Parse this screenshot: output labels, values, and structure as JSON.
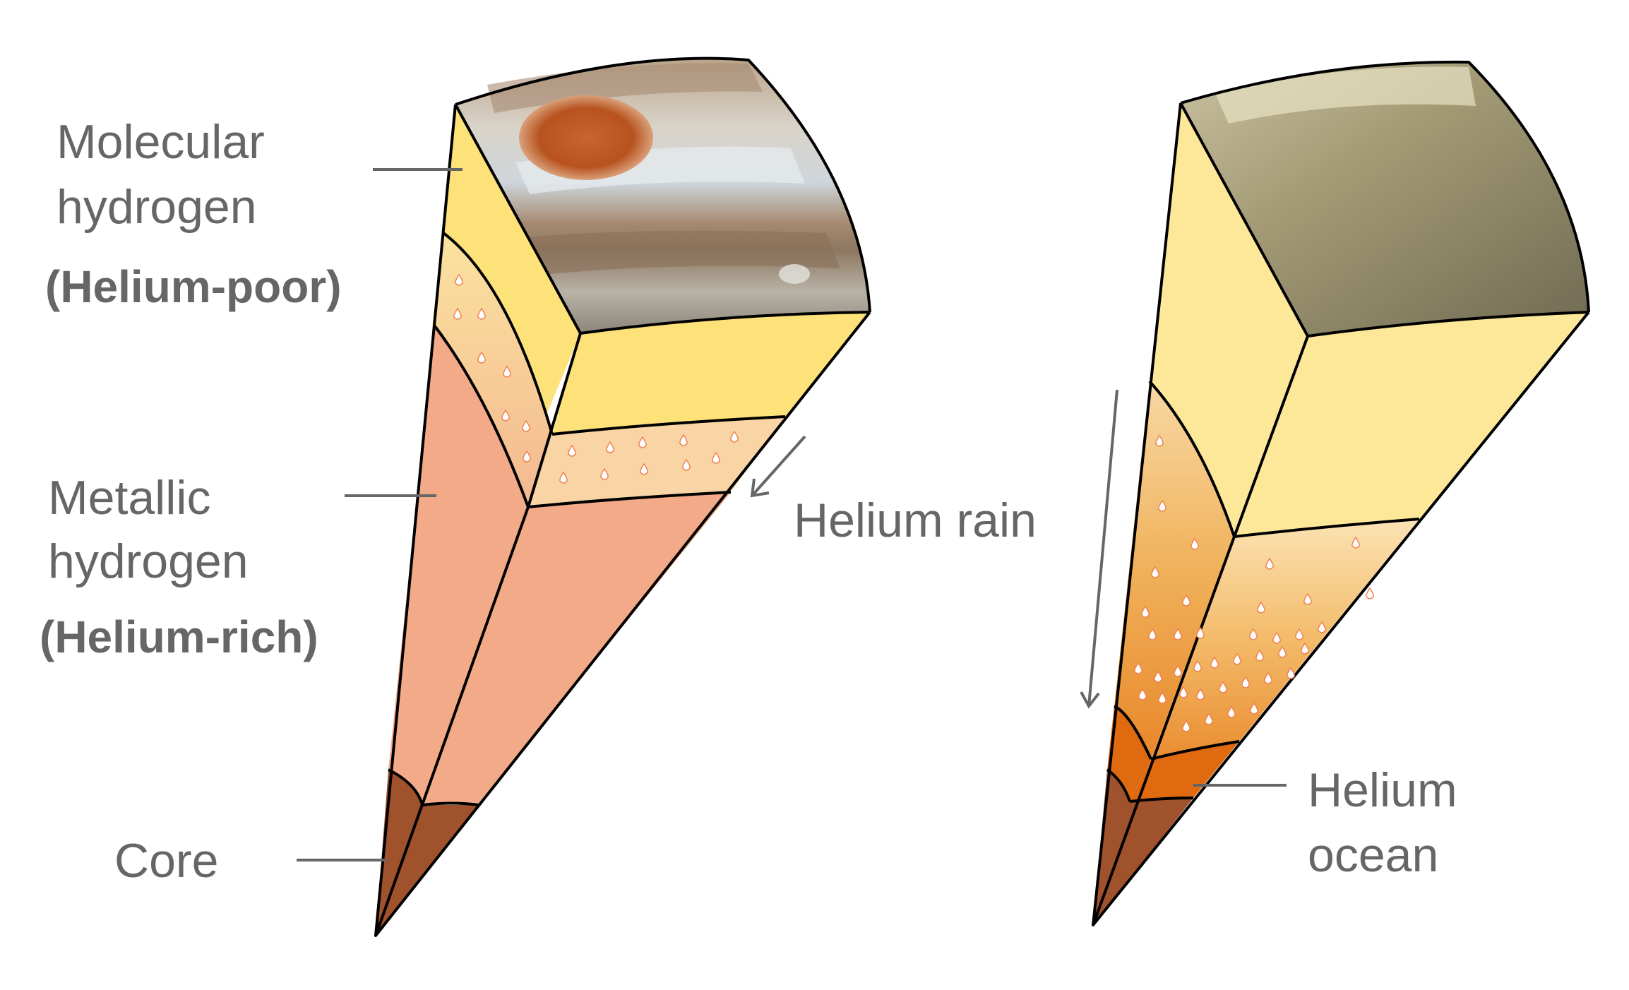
{
  "labels": {
    "molecular_hydrogen": [
      "Molecular",
      "hydrogen"
    ],
    "helium_poor": "(Helium-poor)",
    "metallic_hydrogen": [
      "Metallic",
      "hydrogen"
    ],
    "helium_rich": "(Helium-rich)",
    "core": "Core",
    "helium_rain": "Helium rain",
    "helium_ocean": [
      "Helium",
      "ocean"
    ]
  },
  "colors": {
    "label_text": "#666666",
    "outline": "#000000",
    "molecular_hydrogen_left": "#fde27a",
    "metallic_hydrogen_left": "#f2aa88",
    "transition_left": "#f8c99a",
    "core": "#a0522d",
    "molecular_hydrogen_right": "#fde89a",
    "helium_ocean": "#e06a10",
    "helium_droplet": "#ffffff",
    "droplet_outline": "#f08050",
    "great_red_spot": "#c55a2a",
    "saturn_surface": "#9a8e62"
  },
  "icons": {
    "droplet": "helium-droplet-icon",
    "arrow": "arrow-icon"
  }
}
